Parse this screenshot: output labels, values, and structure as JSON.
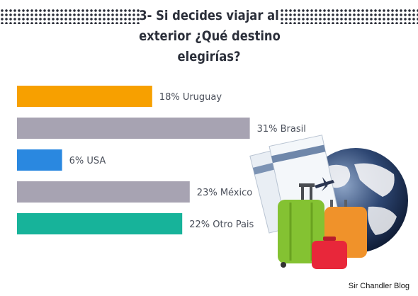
{
  "title_lines": [
    "3- Si decides viajar al",
    "exterior ¿Qué destino",
    "elegirías?"
  ],
  "credit": "Sir Chandler Blog",
  "icons": [
    "world-globe-icon",
    "airplane-icon",
    "boarding-pass-icon",
    "suitcase-icon"
  ],
  "chart_data": {
    "type": "bar",
    "orientation": "horizontal",
    "title": "3- Si decides viajar al exterior ¿Qué destino elegirías?",
    "categories": [
      "Uruguay",
      "Brasil",
      "USA",
      "México",
      "Otro Pais"
    ],
    "values": [
      18,
      31,
      6,
      23,
      22
    ],
    "unit": "%",
    "labels": [
      "18% Uruguay",
      "31% Brasil",
      "6% USA",
      "23% México",
      "22% Otro Pais"
    ],
    "colors": [
      "#f7a000",
      "#a7a3b2",
      "#2a88e0",
      "#a7a3b2",
      "#17b39a"
    ],
    "label_color": "#4a4f5a",
    "grid": false,
    "legend": "none"
  }
}
